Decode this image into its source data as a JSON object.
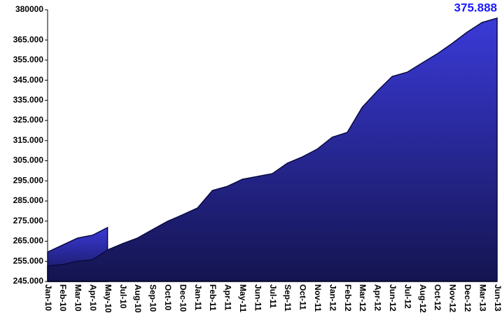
{
  "chart_data": {
    "type": "area",
    "categories": [
      "Jan-10",
      "Feb-10",
      "Mar-10",
      "Apr-10",
      "May-10",
      "Jul-10",
      "Aug-10",
      "Sep-10",
      "Oct-10",
      "Dec-10",
      "Jan-11",
      "Feb-11",
      "Apr-11",
      "May-11",
      "Jun-11",
      "Jul-11",
      "Sep-11",
      "Oct-11",
      "Nov-11",
      "Jan-12",
      "Feb-12",
      "Mar-12",
      "Apr-12",
      "Jun-12",
      "Jul-12",
      "Aug-12",
      "Oct-12",
      "Nov-12",
      "Dec-12",
      "Mar-13",
      "Jun-13"
    ],
    "series": [
      {
        "color": "#2a2ab0",
        "values": [
          259600,
          263100,
          266600,
          268000,
          271800,
          null,
          null,
          null,
          null,
          null,
          null,
          null,
          null,
          null,
          null,
          null,
          null,
          null,
          null,
          null,
          null,
          null,
          null,
          null,
          null,
          null,
          null,
          null,
          null,
          null,
          null
        ]
      },
      {
        "color": "#3535d0",
        "values": [
          252700,
          253400,
          255100,
          255800,
          260700,
          263800,
          266600,
          270800,
          274900,
          278100,
          281500,
          290200,
          292300,
          295800,
          297200,
          298600,
          303800,
          306900,
          310800,
          316700,
          319100,
          331600,
          339600,
          346900,
          349000,
          353600,
          358100,
          363300,
          368900,
          373700,
          375888
        ],
        "value_labels": [
          null,
          null,
          null,
          null,
          null,
          null,
          null,
          null,
          null,
          null,
          null,
          null,
          null,
          null,
          null,
          null,
          null,
          null,
          null,
          null,
          null,
          null,
          null,
          null,
          null,
          null,
          null,
          null,
          null,
          null,
          "375.888"
        ]
      }
    ],
    "ylim": [
      245000,
      380000
    ],
    "yticks": [
      {
        "value": 245000,
        "label": "245.000"
      },
      {
        "value": 255000,
        "label": "255.000"
      },
      {
        "value": 265000,
        "label": "265.000"
      },
      {
        "value": 275000,
        "label": "275.000"
      },
      {
        "value": 285000,
        "label": "285.000"
      },
      {
        "value": 295000,
        "label": "295.000"
      },
      {
        "value": 305000,
        "label": "305.000"
      },
      {
        "value": 315000,
        "label": "315.000"
      },
      {
        "value": 325000,
        "label": "325.000"
      },
      {
        "value": 335000,
        "label": "335.000"
      },
      {
        "value": 345000,
        "label": "345.000"
      },
      {
        "value": 355000,
        "label": "355.000"
      },
      {
        "value": 365000,
        "label": "365.000"
      },
      {
        "value": 380000,
        "label": "380000"
      }
    ]
  }
}
